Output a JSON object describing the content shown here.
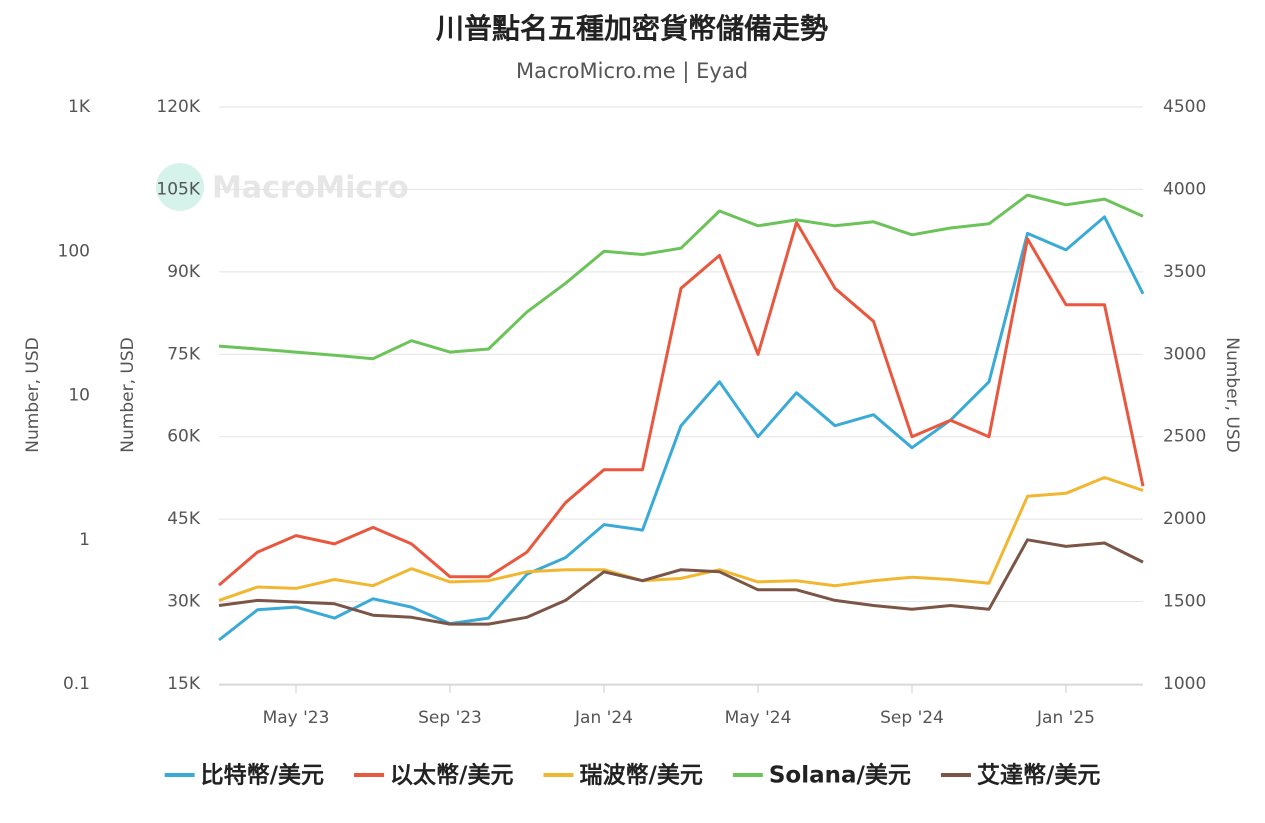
{
  "chart_data": {
    "type": "line",
    "title": "川普點名五種加密貨幣儲備走勢",
    "subtitle": "MacroMicro.me | Eyad",
    "watermark": "MacroMicro",
    "x": [
      "2023-03",
      "2023-04",
      "2023-05",
      "2023-06",
      "2023-07",
      "2023-08",
      "2023-09",
      "2023-10",
      "2023-11",
      "2023-12",
      "2024-01",
      "2024-02",
      "2024-03",
      "2024-04",
      "2024-05",
      "2024-06",
      "2024-07",
      "2024-08",
      "2024-09",
      "2024-10",
      "2024-11",
      "2024-12",
      "2025-01",
      "2025-02",
      "2025-03"
    ],
    "xlim": [
      "2023-03",
      "2025-03"
    ],
    "xticks": [
      {
        "value": "2023-05",
        "label": "May '23"
      },
      {
        "value": "2023-09",
        "label": "Sep '23"
      },
      {
        "value": "2024-01",
        "label": "Jan '24"
      },
      {
        "value": "2024-05",
        "label": "May '24"
      },
      {
        "value": "2024-09",
        "label": "Sep '24"
      },
      {
        "value": "2025-01",
        "label": "Jan '25"
      }
    ],
    "ylabel": "Number, USD",
    "ylim": [
      0.1,
      1000
    ],
    "log_scale": true,
    "yticks": [
      0.1,
      1,
      10,
      100,
      {
        "value": 1000,
        "label": "1K"
      }
    ],
    "y2label": "Number, USD",
    "y2lim": [
      15000,
      120000
    ],
    "y2ticks": [
      {
        "value": 15000,
        "label": "15K"
      },
      {
        "value": 30000,
        "label": "30K"
      },
      {
        "value": 45000,
        "label": "45K"
      },
      {
        "value": 60000,
        "label": "60K"
      },
      {
        "value": 75000,
        "label": "75K"
      },
      {
        "value": 90000,
        "label": "90K"
      },
      {
        "value": 105000,
        "label": "105K"
      },
      {
        "value": 120000,
        "label": "120K"
      }
    ],
    "y3label": "Number, USD",
    "y3lim": [
      1000,
      4500
    ],
    "y3ticks": [
      1000,
      1500,
      2000,
      2500,
      3000,
      3500,
      4000,
      4500
    ],
    "grid": true,
    "series": [
      {
        "name": "比特幣/美元",
        "color": "#3aaad6",
        "axis": "y2",
        "values": [
          23000,
          28500,
          29000,
          27000,
          30500,
          29000,
          26000,
          27000,
          35000,
          38000,
          44000,
          43000,
          62000,
          70000,
          60000,
          68000,
          62000,
          64000,
          58000,
          63000,
          70000,
          97000,
          94000,
          100000,
          86000
        ]
      },
      {
        "name": "以太幣/美元",
        "color": "#e9573f",
        "axis": "y3",
        "values": [
          1600,
          1800,
          1900,
          1850,
          1950,
          1850,
          1650,
          1650,
          1800,
          2100,
          2300,
          2300,
          3400,
          3600,
          3000,
          3800,
          3400,
          3200,
          2500,
          2600,
          2500,
          3700,
          3300,
          3300,
          2200
        ]
      },
      {
        "name": "瑞波幣/美元",
        "color": "#f2b731",
        "axis": "y",
        "values": [
          0.38,
          0.47,
          0.46,
          0.53,
          0.48,
          0.63,
          0.51,
          0.52,
          0.6,
          0.62,
          0.62,
          0.52,
          0.54,
          0.62,
          0.51,
          0.52,
          0.48,
          0.52,
          0.55,
          0.53,
          0.5,
          2.0,
          2.1,
          2.7,
          2.2
        ]
      },
      {
        "name": "Solana/美元",
        "color": "#6cc35a",
        "axis": "y",
        "values": [
          22,
          21,
          20,
          19,
          18,
          24,
          20,
          21,
          38,
          60,
          100,
          95,
          105,
          190,
          150,
          165,
          150,
          160,
          130,
          145,
          155,
          245,
          210,
          230,
          175
        ]
      },
      {
        "name": "艾達幣/美元",
        "color": "#7b5545",
        "axis": "y",
        "values": [
          0.35,
          0.38,
          0.37,
          0.36,
          0.3,
          0.29,
          0.26,
          0.26,
          0.29,
          0.38,
          0.6,
          0.52,
          0.62,
          0.6,
          0.45,
          0.45,
          0.38,
          0.35,
          0.33,
          0.35,
          0.33,
          1.0,
          0.9,
          0.95,
          0.7
        ]
      }
    ],
    "legend_position": "bottom"
  }
}
